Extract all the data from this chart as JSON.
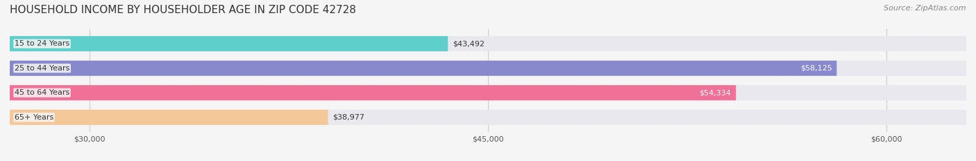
{
  "title": "HOUSEHOLD INCOME BY HOUSEHOLDER AGE IN ZIP CODE 42728",
  "source": "Source: ZipAtlas.com",
  "categories": [
    "15 to 24 Years",
    "25 to 44 Years",
    "45 to 64 Years",
    "65+ Years"
  ],
  "values": [
    43492,
    58125,
    54334,
    38977
  ],
  "bar_colors": [
    "#5ecfca",
    "#8888cc",
    "#f07098",
    "#f5c89a"
  ],
  "bar_bg_color": "#e8e8ee",
  "label_colors": [
    "#333333",
    "#ffffff",
    "#ffffff",
    "#333333"
  ],
  "xlim_min": 27000,
  "xlim_max": 63000,
  "xticks": [
    30000,
    45000,
    60000
  ],
  "xtick_labels": [
    "$30,000",
    "$45,000",
    "$60,000"
  ],
  "background_color": "#f5f5f5",
  "title_fontsize": 11,
  "source_fontsize": 8,
  "bar_label_fontsize": 8,
  "category_fontsize": 8,
  "tick_fontsize": 8
}
